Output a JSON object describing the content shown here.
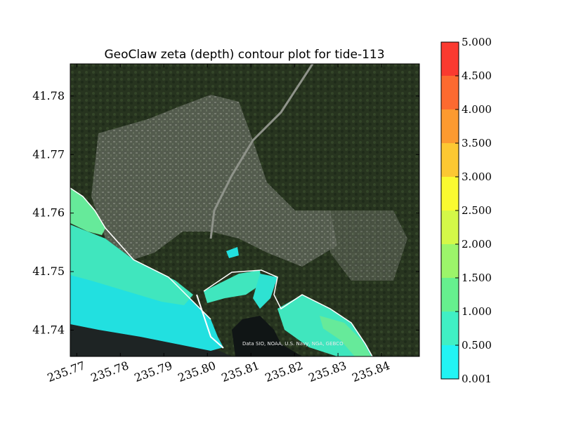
{
  "chart_data": {
    "type": "heatmap",
    "title": "GeoClaw zeta (depth) contour plot for tide-113",
    "xlabel": "",
    "ylabel": "",
    "xlim": [
      235.7685,
      235.8487
    ],
    "ylim": [
      41.7355,
      41.7855
    ],
    "x_ticks": [
      235.77,
      235.78,
      235.79,
      235.8,
      235.81,
      235.82,
      235.83,
      235.84
    ],
    "x_tick_labels": [
      "235.77",
      "235.78",
      "235.79",
      "235.80",
      "235.81",
      "235.82",
      "235.83",
      "235.84"
    ],
    "y_ticks": [
      41.74,
      41.75,
      41.76,
      41.77,
      41.78
    ],
    "y_tick_labels": [
      "41.74",
      "41.75",
      "41.76",
      "41.77",
      "41.78"
    ],
    "colorbar": {
      "levels": [
        0.001,
        0.5,
        1.0,
        1.5,
        2.0,
        2.5,
        3.0,
        3.5,
        4.0,
        4.5,
        5.0
      ],
      "labels": [
        "0.001",
        "0.500",
        "1.000",
        "1.500",
        "2.000",
        "2.500",
        "3.000",
        "3.500",
        "4.000",
        "4.500",
        "5.000"
      ],
      "colors": [
        "#22f4f4",
        "#40f0c4",
        "#66f08e",
        "#9cf56a",
        "#d4f848",
        "#fafa30",
        "#fcc832",
        "#fc9a30",
        "#fc6a30",
        "#fa3a30"
      ]
    },
    "attribution": "Data SIO, NOAA, U.S. Navy, NGA, GEBCO"
  },
  "colors": {
    "land_dark": "#1f2a1c",
    "land_mid": "#3a4a34",
    "urban": "#6f7368",
    "water_deep": "#23dcdc",
    "water_mid": "#3fe4be",
    "water_shallow": "#6cea9c",
    "offshore_dark": "#1e2424"
  }
}
